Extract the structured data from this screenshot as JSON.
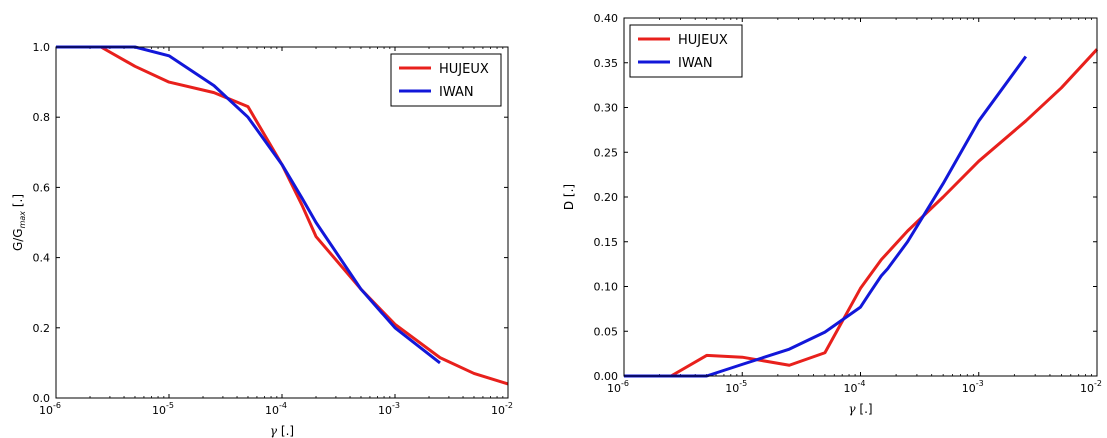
{
  "chart_data": [
    {
      "type": "line",
      "xscale": "log",
      "xlim": [
        1e-06,
        0.01
      ],
      "ylim": [
        0.0,
        1.0
      ],
      "xticks": [
        {
          "base": "10",
          "exp": "-6"
        },
        {
          "base": "10",
          "exp": "-5"
        },
        {
          "base": "10",
          "exp": "-4"
        },
        {
          "base": "10",
          "exp": "-3"
        },
        {
          "base": "10",
          "exp": "-2"
        }
      ],
      "yticks": [
        "0.0",
        "0.2",
        "0.4",
        "0.6",
        "0.8",
        "1.0"
      ],
      "ylabel": {
        "pre": "G/G",
        "sub": "max",
        "post": " [.]"
      },
      "xlabel": {
        "sym": "γ",
        "post": " [.]"
      },
      "legend_position": "top-right",
      "series": [
        {
          "name": "HUJEUX",
          "color": "#e8201c",
          "x": [
            1e-06,
            2.5e-06,
            5e-06,
            1e-05,
            2.5e-05,
            5e-05,
            0.0001,
            0.00015,
            0.0002,
            0.0005,
            0.001,
            0.0025,
            0.005,
            0.01
          ],
          "y": [
            1.0,
            1.0,
            0.945,
            0.9,
            0.87,
            0.83,
            0.665,
            0.55,
            0.46,
            0.31,
            0.21,
            0.115,
            0.07,
            0.04
          ]
        },
        {
          "name": "IWAN",
          "color": "#1217d9",
          "x": [
            1e-06,
            5e-06,
            1e-05,
            2.5e-05,
            5e-05,
            0.0001,
            0.00015,
            0.0002,
            0.0005,
            0.001,
            0.0025
          ],
          "y": [
            1.0,
            1.0,
            0.975,
            0.89,
            0.8,
            0.665,
            0.57,
            0.5,
            0.31,
            0.2,
            0.1
          ]
        }
      ]
    },
    {
      "type": "line",
      "xscale": "log",
      "xlim": [
        1e-06,
        0.01
      ],
      "ylim": [
        0.0,
        0.4
      ],
      "xticks": [
        {
          "base": "10",
          "exp": "-6"
        },
        {
          "base": "10",
          "exp": "-5"
        },
        {
          "base": "10",
          "exp": "-4"
        },
        {
          "base": "10",
          "exp": "-3"
        },
        {
          "base": "10",
          "exp": "-2"
        }
      ],
      "yticks": [
        "0.00",
        "0.05",
        "0.10",
        "0.15",
        "0.20",
        "0.25",
        "0.30",
        "0.35",
        "0.40"
      ],
      "ylabel": {
        "pre": "D [.]",
        "sub": "",
        "post": ""
      },
      "xlabel": {
        "sym": "γ",
        "post": " [.]"
      },
      "legend_position": "top-left",
      "series": [
        {
          "name": "HUJEUX",
          "color": "#e8201c",
          "x": [
            1e-06,
            2.5e-06,
            5e-06,
            1e-05,
            2.5e-05,
            5e-05,
            0.0001,
            0.00015,
            0.00025,
            0.0005,
            0.001,
            0.0025,
            0.005,
            0.01
          ],
          "y": [
            0.0,
            0.0,
            0.023,
            0.021,
            0.012,
            0.026,
            0.098,
            0.13,
            0.162,
            0.2,
            0.24,
            0.285,
            0.322,
            0.365
          ]
        },
        {
          "name": "IWAN",
          "color": "#1217d9",
          "x": [
            1e-06,
            5e-06,
            1e-05,
            2.5e-05,
            5e-05,
            0.0001,
            0.00012,
            0.00015,
            0.00017,
            0.00025,
            0.0005,
            0.001,
            0.0025
          ],
          "y": [
            0.0,
            0.0,
            0.013,
            0.03,
            0.049,
            0.077,
            0.093,
            0.112,
            0.12,
            0.15,
            0.215,
            0.285,
            0.357
          ]
        }
      ]
    }
  ]
}
